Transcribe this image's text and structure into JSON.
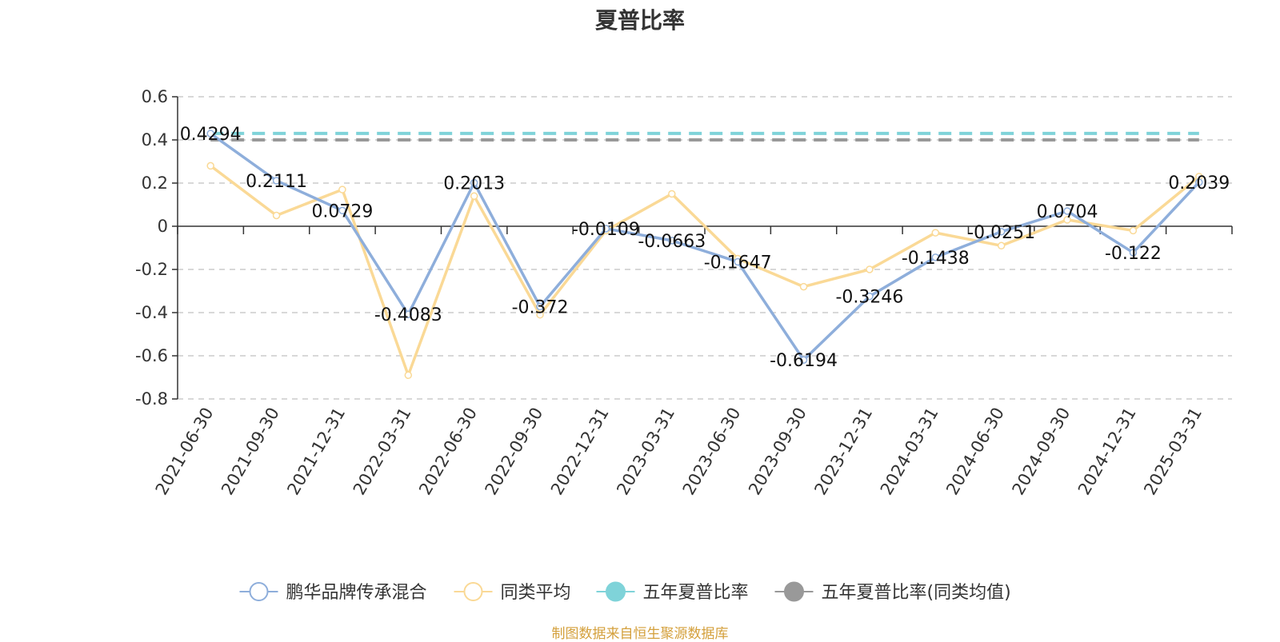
{
  "chart_data": {
    "type": "line",
    "title": "夏普比率",
    "categories": [
      "2021-06-30",
      "2021-09-30",
      "2021-12-31",
      "2022-03-31",
      "2022-06-30",
      "2022-09-30",
      "2022-12-31",
      "2023-03-31",
      "2023-06-30",
      "2023-09-30",
      "2023-12-31",
      "2024-03-31",
      "2024-06-30",
      "2024-09-30",
      "2024-12-31",
      "2025-03-31"
    ],
    "y_ticks": [
      "0.6",
      "0.4",
      "0.2",
      "0",
      "-0.2",
      "-0.4",
      "-0.6",
      "-0.8"
    ],
    "ylim": [
      -0.8,
      0.6
    ],
    "grid": true,
    "legend_position": "bottom",
    "series": [
      {
        "name": "鹏华品牌传承混合",
        "color": "#8eaedb",
        "values": [
          0.4294,
          0.2111,
          0.0729,
          -0.4083,
          0.2013,
          -0.372,
          -0.0109,
          -0.0663,
          -0.1647,
          -0.6194,
          -0.3246,
          -0.1438,
          -0.0251,
          0.0704,
          -0.122,
          0.2039
        ],
        "labels": [
          "0.4294",
          "0.2111",
          "0.0729",
          "-0.4083",
          "0.2013",
          "-0.372",
          "-0.0109",
          "-0.0663",
          "-0.1647",
          "-0.6194",
          "-0.3246",
          "-0.1438",
          "-0.0251",
          "0.0704",
          "-0.122",
          "0.2039"
        ]
      },
      {
        "name": "同类平均",
        "color": "#fad996",
        "values": [
          0.28,
          0.05,
          0.17,
          -0.69,
          0.14,
          -0.41,
          -0.02,
          0.15,
          -0.15,
          -0.28,
          -0.2,
          -0.03,
          -0.09,
          0.03,
          -0.02,
          0.23
        ]
      },
      {
        "name": "五年夏普比率",
        "color": "#7fd3d9",
        "marker": "filled",
        "value": 0.43
      },
      {
        "name": "五年夏普比率(同类均值)",
        "color": "#999999",
        "marker": "filled",
        "value": 0.4
      }
    ]
  },
  "source_note": "制图数据来自恒生聚源数据库"
}
